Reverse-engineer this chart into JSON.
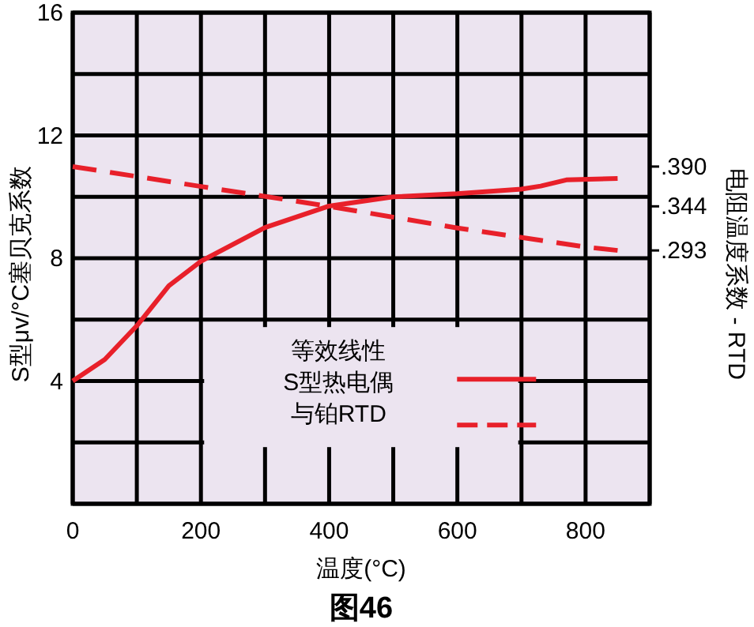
{
  "chart_data": {
    "type": "line",
    "title": "图46",
    "xlabel": "温度(°C)",
    "ylabel": "S型μv/°C塞贝克系数",
    "y2label": "电阻温度系数 - RTD",
    "annotations": [
      "等效线性",
      "S型热电偶",
      "与铂RTD"
    ],
    "series": [
      {
        "color": "#e8202a",
        "line_style": "solid",
        "x": [
          0,
          50,
          100,
          150,
          200,
          300,
          400,
          500,
          600,
          700,
          730,
          770,
          850
        ],
        "values": [
          4.0,
          4.7,
          5.8,
          7.1,
          7.9,
          9.0,
          9.7,
          10.0,
          10.1,
          10.25,
          10.35,
          10.55,
          10.6
        ]
      },
      {
        "color": "#e8202a",
        "line_style": "dashed",
        "axis": "y2",
        "x": [
          0,
          200,
          400,
          600,
          800,
          850
        ],
        "values": [
          0.39,
          0.367,
          0.344,
          0.319,
          0.297,
          0.293
        ]
      }
    ],
    "xlim": [
      0,
      900
    ],
    "ylim": [
      0,
      16
    ],
    "y2lim": [
      0,
      0.568
    ],
    "xticks": [
      0,
      {
        "value": 100,
        "label": null
      },
      200,
      {
        "value": 300,
        "label": null
      },
      400,
      {
        "value": 500,
        "label": null
      },
      600,
      {
        "value": 700,
        "label": null
      },
      800,
      {
        "value": 900,
        "label": null
      }
    ],
    "yticks": [
      {
        "value": 0,
        "label": null
      },
      {
        "value": 2,
        "label": null
      },
      4,
      {
        "value": 6,
        "label": null
      },
      8,
      {
        "value": 10,
        "label": null
      },
      12,
      {
        "value": 14,
        "label": null
      },
      16
    ],
    "y2ticks": [
      {
        "value": 0.39,
        "label": ".390"
      },
      {
        "value": 0.344,
        "label": ".344"
      },
      {
        "value": 0.293,
        "label": ".293"
      }
    ],
    "grid": true
  }
}
